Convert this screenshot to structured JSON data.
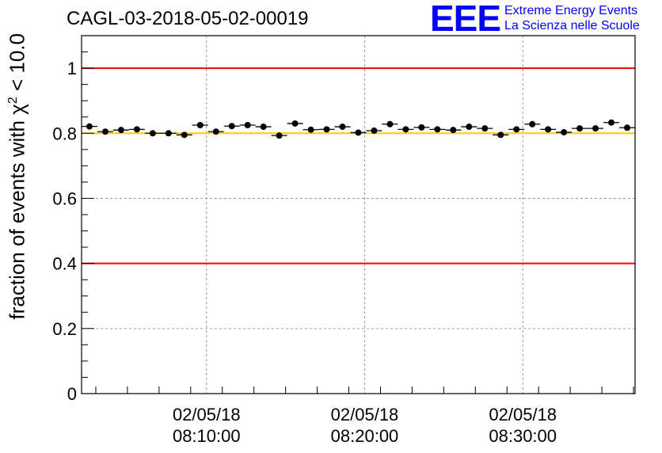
{
  "chart_data": {
    "type": "scatter",
    "title": "CAGL-03-2018-05-02-00019",
    "ylabel_pre": "fraction of events with χ",
    "ylabel_sup": "2",
    "ylabel_post": " < 10.0",
    "ylim": [
      0,
      1.1
    ],
    "yticks": [
      "0",
      "0.2",
      "0.4",
      "0.6",
      "0.8",
      "1"
    ],
    "ytick_values": [
      0,
      0.2,
      0.4,
      0.6,
      0.8,
      1.0
    ],
    "xlim_minutes": [
      2.1,
      37.1
    ],
    "xticks_minutes": [
      10,
      20,
      30
    ],
    "xtick_labels": [
      [
        "02/05/18",
        "08:10:00"
      ],
      [
        "02/05/18",
        "08:20:00"
      ],
      [
        "02/05/18",
        "08:30:00"
      ]
    ],
    "grid": true,
    "reference_lines": [
      {
        "y": 1.0,
        "color": "#ff0000"
      },
      {
        "y": 0.8,
        "color": "#ffcc00"
      },
      {
        "y": 0.4,
        "color": "#ff0000"
      }
    ],
    "bin_width_minutes": 1,
    "x_minutes": [
      2.6,
      3.6,
      4.6,
      5.6,
      6.6,
      7.6,
      8.6,
      9.6,
      10.6,
      11.6,
      12.6,
      13.6,
      14.6,
      15.6,
      16.6,
      17.6,
      18.6,
      19.6,
      20.6,
      21.6,
      22.6,
      23.6,
      24.6,
      25.6,
      26.6,
      27.6,
      28.6,
      29.6,
      30.6,
      31.6,
      32.6,
      33.6,
      34.6,
      35.6,
      36.6
    ],
    "values": [
      0.821,
      0.805,
      0.81,
      0.812,
      0.8,
      0.8,
      0.795,
      0.825,
      0.805,
      0.822,
      0.825,
      0.82,
      0.793,
      0.83,
      0.811,
      0.812,
      0.82,
      0.802,
      0.808,
      0.828,
      0.812,
      0.818,
      0.812,
      0.81,
      0.82,
      0.815,
      0.795,
      0.812,
      0.828,
      0.812,
      0.803,
      0.815,
      0.815,
      0.833,
      0.817
    ],
    "errors": [
      0.007,
      0.007,
      0.007,
      0.007,
      0.007,
      0.007,
      0.007,
      0.007,
      0.007,
      0.007,
      0.007,
      0.007,
      0.007,
      0.007,
      0.007,
      0.007,
      0.007,
      0.007,
      0.007,
      0.007,
      0.007,
      0.007,
      0.007,
      0.007,
      0.007,
      0.007,
      0.007,
      0.007,
      0.007,
      0.007,
      0.007,
      0.007,
      0.007,
      0.007,
      0.007
    ]
  },
  "logo": {
    "mark": "EEE",
    "line1": "Extreme Energy Events",
    "line2": "La Scienza nelle Scuole",
    "color": "#0000ff"
  }
}
